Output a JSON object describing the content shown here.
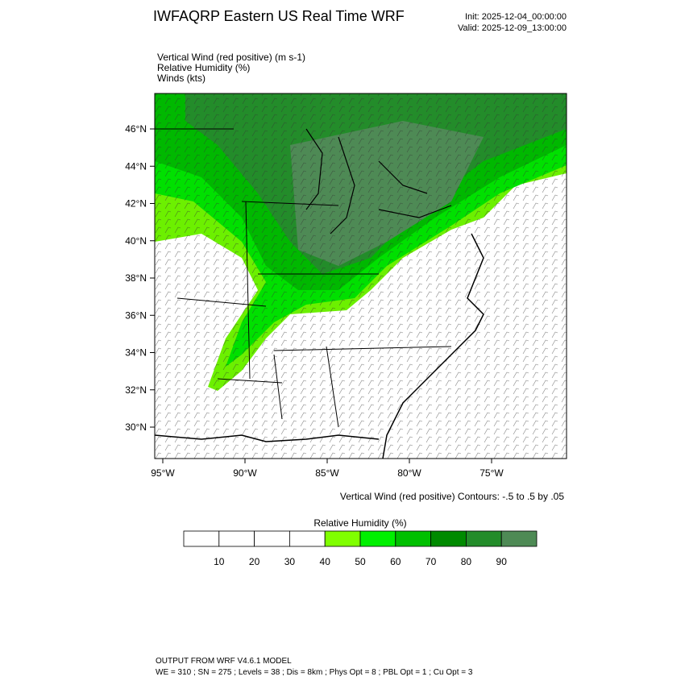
{
  "header": {
    "title": "IWFAQRP Eastern US Real Time WRF",
    "init": "Init: 2025-12-04_00:00:00",
    "valid": "Valid: 2025-12-09_13:00:00"
  },
  "fields": [
    "Vertical Wind (red positive)   (m s-1)",
    "Relative Humidity   (%)",
    "Winds   (kts)"
  ],
  "map": {
    "lat_labels": [
      "46°N",
      "44°N",
      "42°N",
      "40°N",
      "38°N",
      "36°N",
      "34°N",
      "32°N",
      "30°N"
    ],
    "lon_labels": [
      "95°W",
      "90°W",
      "85°W",
      "80°W",
      "75°W"
    ],
    "contour_note": "Vertical Wind (red positive) Contours: -.5 to .5 by .05"
  },
  "colorbar": {
    "title": "Relative Humidity   (%)",
    "colors": [
      "#ffffff",
      "#ffffff",
      "#ffffff",
      "#ffffff",
      "#80ff00",
      "#00f000",
      "#00c000",
      "#008a00",
      "#238c2a",
      "#4e8a55"
    ],
    "labels": [
      "10",
      "20",
      "30",
      "40",
      "50",
      "60",
      "70",
      "80",
      "90"
    ]
  },
  "footer": [
    "OUTPUT FROM WRF V4.6.1 MODEL",
    "WE = 310 ; SN = 275 ; Levels = 38 ; Dis = 8km ; Phys Opt = 8 ; PBL Opt = 1 ; Cu Opt = 3"
  ]
}
